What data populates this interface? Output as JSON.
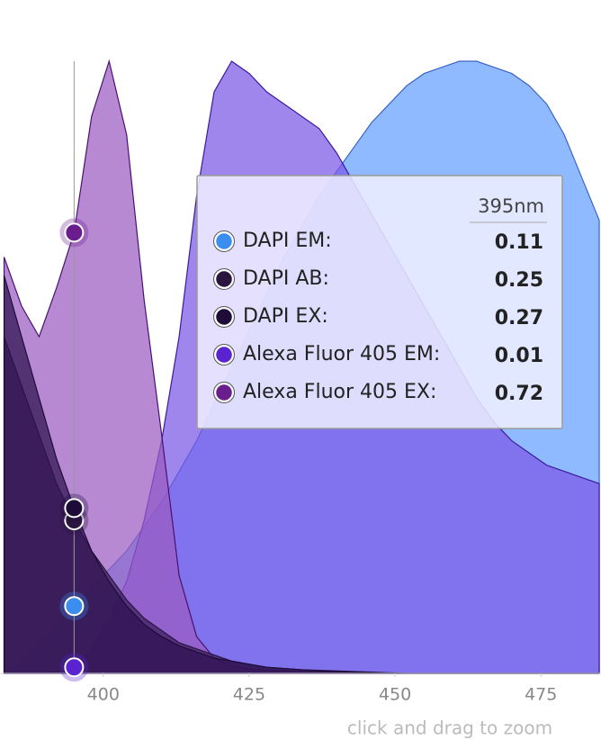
{
  "chart_data": {
    "type": "area",
    "x": [
      383,
      386,
      389,
      392,
      395,
      398,
      401,
      404,
      407,
      410,
      413,
      416,
      419,
      422,
      425,
      428,
      431,
      434,
      437,
      440,
      443,
      446,
      449,
      452,
      455,
      458,
      461,
      464,
      467,
      470,
      473,
      476,
      479,
      482,
      485
    ],
    "xlim": [
      382.3,
      485.3
    ],
    "ylim": [
      0,
      1
    ],
    "xticks": [
      400,
      425,
      450,
      475
    ],
    "series": [
      {
        "name": "DAPI EM",
        "color": "#8ab6ff",
        "marker": "#3b8ef0",
        "stroke": "#3c64c8",
        "values": [
          0,
          0.02,
          0.05,
          0.08,
          0.11,
          0.14,
          0.17,
          0.2,
          0.24,
          0.28,
          0.33,
          0.38,
          0.44,
          0.5,
          0.56,
          0.62,
          0.68,
          0.73,
          0.78,
          0.82,
          0.86,
          0.9,
          0.93,
          0.96,
          0.98,
          0.99,
          1.0,
          1.0,
          0.99,
          0.98,
          0.96,
          0.93,
          0.88,
          0.81,
          0.74
        ]
      },
      {
        "name": "Alexa Fluor 405 EM",
        "color": "#7a58e6",
        "marker": "#5a22d0",
        "stroke": "#3c1aa0",
        "values": [
          0,
          0,
          0,
          0.003,
          0.01,
          0.04,
          0.09,
          0.15,
          0.25,
          0.38,
          0.55,
          0.78,
          0.95,
          1.0,
          0.98,
          0.95,
          0.93,
          0.91,
          0.89,
          0.85,
          0.8,
          0.75,
          0.7,
          0.65,
          0.6,
          0.55,
          0.5,
          0.45,
          0.41,
          0.38,
          0.36,
          0.34,
          0.33,
          0.32,
          0.31
        ]
      },
      {
        "name": "Alexa Fluor 405 EX",
        "color": "#9a5cc0",
        "marker": "#6a1e8e",
        "stroke": "#4a1070",
        "values": [
          0.68,
          0.6,
          0.55,
          0.63,
          0.72,
          0.91,
          1.0,
          0.88,
          0.61,
          0.39,
          0.16,
          0.06,
          0.025,
          0.012,
          0.007,
          0.005,
          0.004,
          0.003,
          0.002,
          0.002,
          0.001,
          0.001,
          0,
          0,
          0,
          0,
          0,
          0,
          0,
          0,
          0,
          0,
          0,
          0,
          0
        ]
      },
      {
        "name": "DAPI AB",
        "color": "#3a1f5a",
        "marker": "#2a1540",
        "stroke": "#2a1540",
        "values": [
          0.55,
          0.47,
          0.39,
          0.31,
          0.25,
          0.2,
          0.16,
          0.12,
          0.09,
          0.07,
          0.05,
          0.04,
          0.03,
          0.02,
          0.015,
          0.01,
          0.008,
          0.006,
          0.005,
          0.004,
          0.003,
          0.002,
          0.001,
          0,
          0,
          0,
          0,
          0,
          0,
          0,
          0,
          0,
          0,
          0,
          0
        ]
      },
      {
        "name": "DAPI EX",
        "color": "#2e1250",
        "marker": "#1e0c38",
        "stroke": "#1e0c38",
        "values": [
          0.65,
          0.55,
          0.45,
          0.35,
          0.27,
          0.2,
          0.15,
          0.11,
          0.08,
          0.06,
          0.045,
          0.035,
          0.025,
          0.02,
          0.015,
          0.01,
          0.008,
          0.006,
          0.004,
          0.003,
          0.002,
          0.001,
          0,
          0,
          0,
          0,
          0,
          0,
          0,
          0,
          0,
          0,
          0,
          0,
          0
        ]
      }
    ],
    "crosshair": {
      "value": 395,
      "label": "395nm"
    },
    "tooltip_rows": [
      {
        "label": "DAPI EM:",
        "value": 0.11,
        "series": 0
      },
      {
        "label": "DAPI AB:",
        "value": 0.25,
        "series": 3
      },
      {
        "label": "DAPI EX:",
        "value": 0.27,
        "series": 4
      },
      {
        "label": "Alexa Fluor 405 EM:",
        "value": 0.01,
        "series": 1
      },
      {
        "label": "Alexa Fluor 405 EX:",
        "value": 0.72,
        "series": 2
      }
    ],
    "hint": "click and drag to zoom"
  }
}
